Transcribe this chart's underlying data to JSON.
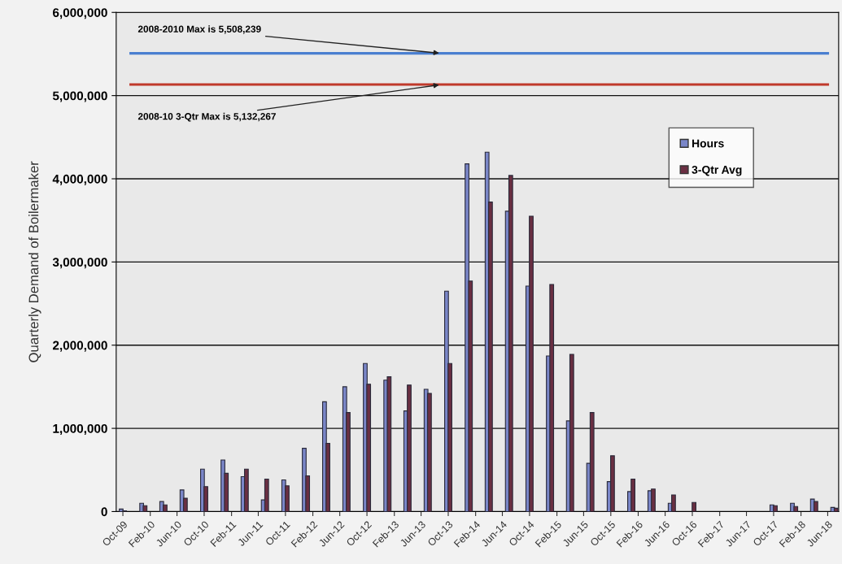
{
  "chart_data": {
    "type": "bar",
    "ylabel": "Quarterly Demand of Boilermaker",
    "x": [
      "2009-10-01",
      "2010-01-01",
      "2010-04-01",
      "2010-07-01",
      "2010-10-01",
      "2011-01-01",
      "2011-04-01",
      "2011-07-01",
      "2011-10-01",
      "2012-01-01",
      "2012-04-01",
      "2012-07-01",
      "2012-10-01",
      "2013-01-01",
      "2013-04-01",
      "2013-07-01",
      "2013-10-01",
      "2014-01-01",
      "2014-04-01",
      "2014-07-01",
      "2014-10-01",
      "2015-01-01",
      "2015-04-01",
      "2015-07-01",
      "2015-10-01",
      "2016-01-01",
      "2016-04-01",
      "2016-07-01",
      "2016-10-01",
      "2017-01-01",
      "2017-04-01",
      "2017-07-01",
      "2017-10-01",
      "2018-01-01",
      "2018-04-01",
      "2018-07-01"
    ],
    "series": [
      {
        "name": "Hours",
        "color": "#7a86c8",
        "values": [
          30000,
          100000,
          120000,
          260000,
          510000,
          620000,
          420000,
          140000,
          380000,
          760000,
          1320000,
          1500000,
          1780000,
          1580000,
          1210000,
          1470000,
          2650000,
          4180000,
          4320000,
          3610000,
          2710000,
          1870000,
          1090000,
          580000,
          360000,
          240000,
          250000,
          100000,
          0,
          0,
          0,
          0,
          80000,
          100000,
          150000,
          50000
        ]
      },
      {
        "name": "3-Qtr Avg",
        "color": "#6a2f42",
        "values": [
          10000,
          70000,
          80000,
          160000,
          300000,
          460000,
          510000,
          390000,
          310000,
          430000,
          820000,
          1190000,
          1530000,
          1620000,
          1520000,
          1420000,
          1780000,
          2770000,
          3720000,
          4040000,
          3550000,
          2730000,
          1890000,
          1190000,
          670000,
          390000,
          270000,
          200000,
          110000,
          0,
          0,
          0,
          70000,
          60000,
          120000,
          40000
        ]
      }
    ],
    "ylim": [
      0,
      6000000
    ],
    "yticks": [
      0,
      {
        "value": 1000000,
        "label": "1,000,000"
      },
      {
        "value": 2000000,
        "label": "2,000,000"
      },
      {
        "value": 3000000,
        "label": "3,000,000"
      },
      {
        "value": 4000000,
        "label": "4,000,000"
      },
      {
        "value": 5000000,
        "label": "5,000,000"
      },
      {
        "value": 6000000,
        "label": "6,000,000"
      }
    ],
    "xlim": [
      "2009-09-01",
      "2018-07-20"
    ],
    "xticks": [
      {
        "value": "2009-10-01",
        "label": "Oct-09"
      },
      {
        "value": "2010-02-01",
        "label": "Feb-10"
      },
      {
        "value": "2010-06-01",
        "label": "Jun-10"
      },
      {
        "value": "2010-10-01",
        "label": "Oct-10"
      },
      {
        "value": "2011-02-01",
        "label": "Feb-11"
      },
      {
        "value": "2011-06-01",
        "label": "Jun-11"
      },
      {
        "value": "2011-10-01",
        "label": "Oct-11"
      },
      {
        "value": "2012-02-01",
        "label": "Feb-12"
      },
      {
        "value": "2012-06-01",
        "label": "Jun-12"
      },
      {
        "value": "2012-10-01",
        "label": "Oct-12"
      },
      {
        "value": "2013-02-01",
        "label": "Feb-13"
      },
      {
        "value": "2013-06-01",
        "label": "Jun-13"
      },
      {
        "value": "2013-10-01",
        "label": "Oct-13"
      },
      {
        "value": "2014-02-01",
        "label": "Feb-14"
      },
      {
        "value": "2014-06-01",
        "label": "Jun-14"
      },
      {
        "value": "2014-10-01",
        "label": "Oct-14"
      },
      {
        "value": "2015-02-01",
        "label": "Feb-15"
      },
      {
        "value": "2015-06-01",
        "label": "Jun-15"
      },
      {
        "value": "2015-10-01",
        "label": "Oct-15"
      },
      {
        "value": "2016-02-01",
        "label": "Feb-16"
      },
      {
        "value": "2016-06-01",
        "label": "Jun-16"
      },
      {
        "value": "2016-10-01",
        "label": "Oct-16"
      },
      {
        "value": "2017-02-01",
        "label": "Feb-17"
      },
      {
        "value": "2017-06-01",
        "label": "Jun-17"
      },
      {
        "value": "2017-10-01",
        "label": "Oct-17"
      },
      {
        "value": "2018-02-01",
        "label": "Feb-18"
      },
      {
        "value": "2018-06-01",
        "label": "Jun-18"
      }
    ],
    "ref_lines": [
      {
        "axis": "y",
        "value": 5508239,
        "label": "2008-2010 Max is 5,508,239",
        "color": "#4a7fd0"
      },
      {
        "axis": "y",
        "value": 5132267,
        "label": "2008-10 3-Qtr Max is 5,132,267",
        "color": "#c0392b"
      }
    ],
    "grid": "y",
    "legend": "right"
  }
}
